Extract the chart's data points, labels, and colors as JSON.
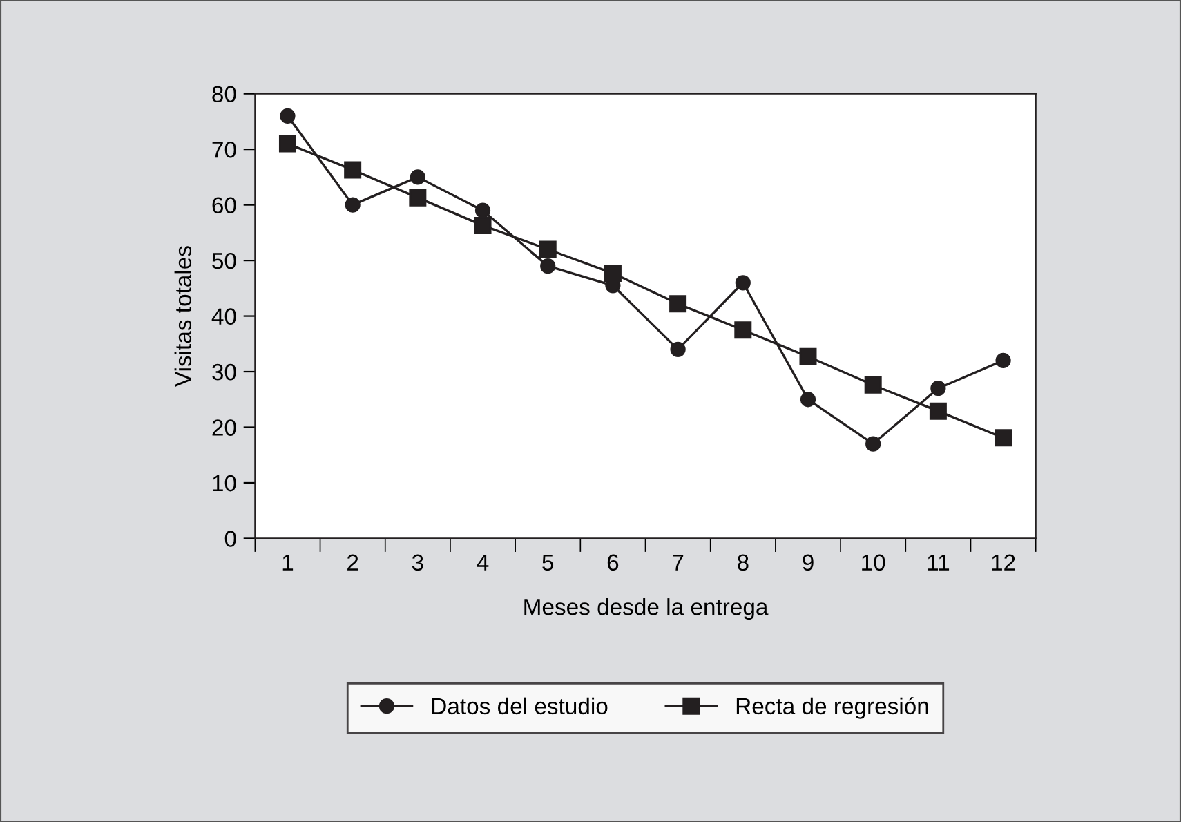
{
  "chart_data": {
    "type": "line",
    "xlabel": "Meses desde la entrega",
    "ylabel": "Visitas totales",
    "categories": [
      "1",
      "2",
      "3",
      "4",
      "5",
      "6",
      "7",
      "8",
      "9",
      "10",
      "11",
      "12"
    ],
    "series": [
      {
        "name": "Datos del estudio",
        "color": "#231f20",
        "marker": "circle",
        "values": [
          76,
          60,
          65,
          59,
          49,
          45.5,
          34,
          46,
          25,
          17,
          27,
          32
        ]
      },
      {
        "name": "Recta de regresión",
        "color": "#231f20",
        "marker": "square",
        "values": [
          71,
          66.3,
          61.3,
          56.3,
          52,
          47.7,
          42.2,
          37.5,
          32.7,
          27.6,
          22.9,
          18.1
        ]
      }
    ],
    "ylim": [
      0,
      80
    ],
    "yticks": [
      0,
      10,
      20,
      30,
      40,
      50,
      60,
      70,
      80
    ],
    "grid": false,
    "legend": "bottom",
    "line_style": "solid"
  }
}
